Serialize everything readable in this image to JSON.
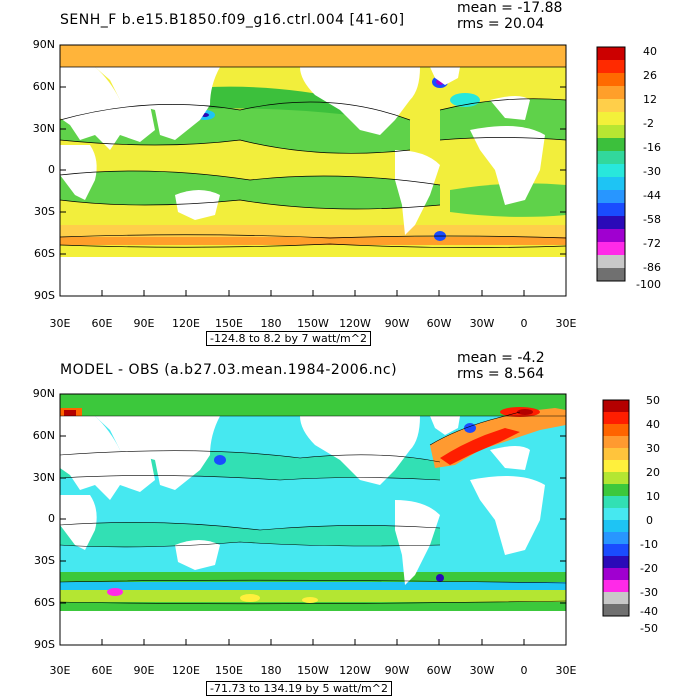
{
  "panels": [
    {
      "title": "SENH_F b.e15.B1850.f09_g16.ctrl.004 [41-60]",
      "mean": "mean = -17.88",
      "rms": "rms = 20.04",
      "lat_labels": [
        "90N",
        "60N",
        "30N",
        "0",
        "30S",
        "60S",
        "90S"
      ],
      "lon_labels": [
        "30E",
        "60E",
        "90E",
        "120E",
        "150E",
        "180",
        "150W",
        "120W",
        "90W",
        "60W",
        "30W",
        "0",
        "30E"
      ],
      "contour_info": "-124.8 to 8.2 by 7 watt/m^2",
      "colorbar_labels": [
        "40",
        "26",
        "12",
        "-2",
        "-16",
        "-30",
        "-44",
        "-58",
        "-72",
        "-86",
        "-100"
      ],
      "colorbar_colors": [
        "#cc0000",
        "#ff2a00",
        "#ff6a00",
        "#ff9f2a",
        "#ffcf4a",
        "#f3f03a",
        "#b8e632",
        "#3cc03c",
        "#32d89c",
        "#28e8dc",
        "#1ec4f4",
        "#2896ff",
        "#1a4cff",
        "#2a0ab8",
        "#a000d0",
        "#ff2ae8",
        "#c8c8c8",
        "#707070"
      ]
    },
    {
      "title": "MODEL - OBS (a.b27.03.mean.1984-2006.nc)",
      "mean": "mean = -4.2",
      "rms": "rms = 8.564",
      "lat_labels": [
        "90N",
        "60N",
        "30N",
        "0",
        "30S",
        "60S",
        "90S"
      ],
      "lon_labels": [
        "30E",
        "60E",
        "90E",
        "120E",
        "150E",
        "180",
        "150W",
        "120W",
        "90W",
        "60W",
        "30W",
        "0",
        "30E"
      ],
      "contour_info": "-71.73 to 134.19 by 5 watt/m^2",
      "colorbar_labels": [
        "50",
        "40",
        "30",
        "20",
        "10",
        "0",
        "-10",
        "-20",
        "-30",
        "-40",
        "-50"
      ],
      "colorbar_colors": [
        "#b40000",
        "#ff1e00",
        "#ff6400",
        "#ff9a30",
        "#ffc43c",
        "#fff03c",
        "#b4e632",
        "#3cc83c",
        "#32e0b4",
        "#46e8f0",
        "#1ec4f4",
        "#2896ff",
        "#1a4cff",
        "#2a0ab8",
        "#a000d0",
        "#ff2ae8",
        "#c8c8c8",
        "#707070"
      ]
    }
  ]
}
